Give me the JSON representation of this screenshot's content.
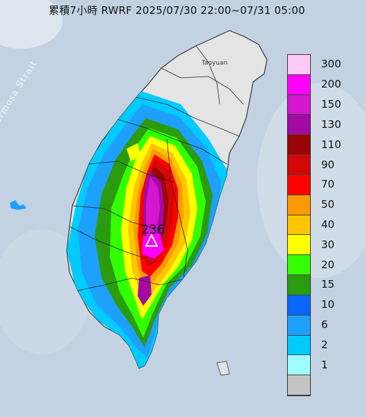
{
  "title": "累積7小時 RWRF 2025/07/30 22:00~07/31 05:00",
  "map": {
    "sea_label": "Formosa Strait",
    "city_label": "Taoyuan",
    "peak_value": "236",
    "peak_marker": "triangle-marker-icon"
  },
  "legend": [
    {
      "label": "300",
      "color": "#ffc8f6"
    },
    {
      "label": "200",
      "color": "#ff00ff"
    },
    {
      "label": "150",
      "color": "#d615d0"
    },
    {
      "label": "130",
      "color": "#a30aa3"
    },
    {
      "label": "110",
      "color": "#9b0505"
    },
    {
      "label": "90",
      "color": "#d40606"
    },
    {
      "label": "70",
      "color": "#ff0000"
    },
    {
      "label": "50",
      "color": "#ff9a00"
    },
    {
      "label": "40",
      "color": "#ffc600"
    },
    {
      "label": "30",
      "color": "#ffff00"
    },
    {
      "label": "20",
      "color": "#33ff00"
    },
    {
      "label": "15",
      "color": "#2b9b10"
    },
    {
      "label": "10",
      "color": "#0a66ff"
    },
    {
      "label": "6",
      "color": "#1ea0ff"
    },
    {
      "label": "2",
      "color": "#00cbff"
    },
    {
      "label": "1",
      "color": "#9ffffd"
    },
    {
      "label": "",
      "color": "#c4c4c4"
    }
  ]
}
